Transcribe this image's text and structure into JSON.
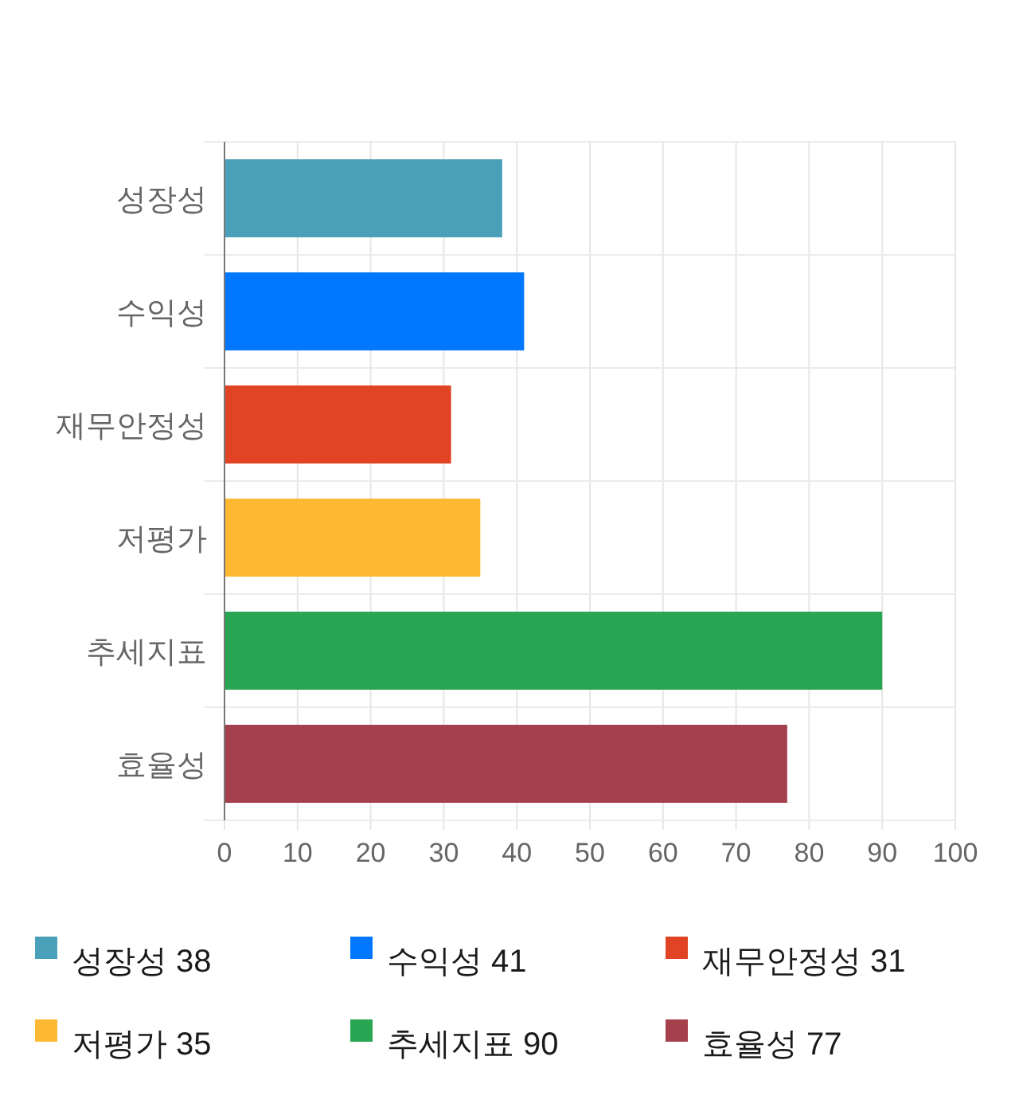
{
  "chart_data": {
    "type": "bar",
    "orientation": "horizontal",
    "stacked": true,
    "categories": [
      "성장성",
      "수익성",
      "재무안정성",
      "저평가",
      "추세지표",
      "효율성"
    ],
    "series": [
      {
        "name": "성장성 38",
        "color": "#4aa0b9",
        "values": [
          38,
          null,
          null,
          null,
          null,
          null
        ]
      },
      {
        "name": "수익성 41",
        "color": "#0077ff",
        "values": [
          null,
          41,
          null,
          null,
          null,
          null
        ]
      },
      {
        "name": "재무안정성 31",
        "color": "#e04424",
        "values": [
          null,
          null,
          31,
          null,
          null,
          null
        ]
      },
      {
        "name": "저평가 35",
        "color": "#fdb933",
        "values": [
          null,
          null,
          null,
          35,
          null,
          null
        ]
      },
      {
        "name": "추세지표 90",
        "color": "#29a654",
        "values": [
          null,
          null,
          null,
          null,
          90,
          null
        ]
      },
      {
        "name": "효율성 77",
        "color": "#a5404d",
        "values": [
          null,
          null,
          null,
          null,
          null,
          77
        ]
      }
    ],
    "xlim": [
      0,
      100
    ],
    "xticks": [
      0,
      10,
      20,
      30,
      40,
      50,
      60,
      70,
      80,
      90,
      100
    ],
    "grid": true,
    "legend": "bottom"
  }
}
